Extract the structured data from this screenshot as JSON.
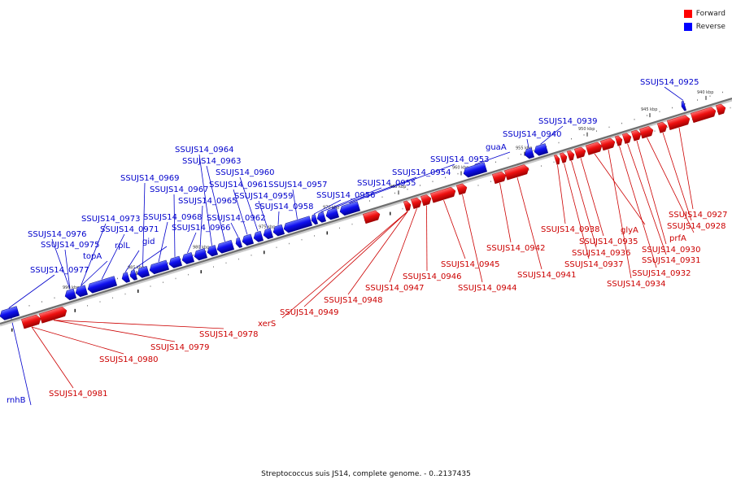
{
  "legend": {
    "items": [
      {
        "label": "Forward",
        "color": "#ff0000"
      },
      {
        "label": "Reverse",
        "color": "#0000ff"
      }
    ]
  },
  "caption": "Streptococcus suis JS14, complete genome. - 0..2137435",
  "colors": {
    "forward": "#e0101a",
    "reverse": "#1a22e8",
    "forward_label": "#cc0000",
    "reverse_label": "#0000cc"
  },
  "ruler": {
    "ticks": [
      "940 kbp",
      "945 kbp",
      "950 kbp",
      "955 kbp",
      "960 kbp",
      "965 kbp",
      "970 kbp",
      "975 kbp",
      "980 kbp",
      "985 kbp",
      "990 kbp"
    ]
  },
  "reverse_labels": [
    "SSUJS14_0925",
    "SSUJS14_0939",
    "SSUJS14_0940",
    "guaA",
    "SSUJS14_0953",
    "SSUJS14_0954",
    "SSUJS14_0955",
    "SSUJS14_0956",
    "SSUJS14_0957",
    "SSUJS14_0958",
    "SSUJS14_0959",
    "SSUJS14_0960",
    "SSUJS14_0961",
    "SSUJS14_0962",
    "SSUJS14_0963",
    "SSUJS14_0964",
    "SSUJS14_0965",
    "SSUJS14_0966",
    "SSUJS14_0967",
    "SSUJS14_0968",
    "SSUJS14_0969",
    "gid",
    "rplL",
    "SSUJS14_0971",
    "SSUJS14_0973",
    "topA",
    "SSUJS14_0975",
    "SSUJS14_0976",
    "SSUJS14_0977",
    "rnhB"
  ],
  "forward_labels": [
    "SSUJS14_0927",
    "SSUJS14_0928",
    "prfA",
    "SSUJS14_0930",
    "SSUJS14_0931",
    "SSUJS14_0932",
    "SSUJS14_0934",
    "glyA",
    "SSUJS14_0935",
    "SSUJS14_0936",
    "SSUJS14_0937",
    "SSUJS14_0938",
    "SSUJS14_0941",
    "SSUJS14_0942",
    "SSUJS14_0944",
    "SSUJS14_0945",
    "SSUJS14_0946",
    "SSUJS14_0947",
    "SSUJS14_0948",
    "SSUJS14_0949",
    "xerS",
    "SSUJS14_0978",
    "SSUJS14_0979",
    "SSUJS14_0980",
    "SSUJS14_0981"
  ]
}
